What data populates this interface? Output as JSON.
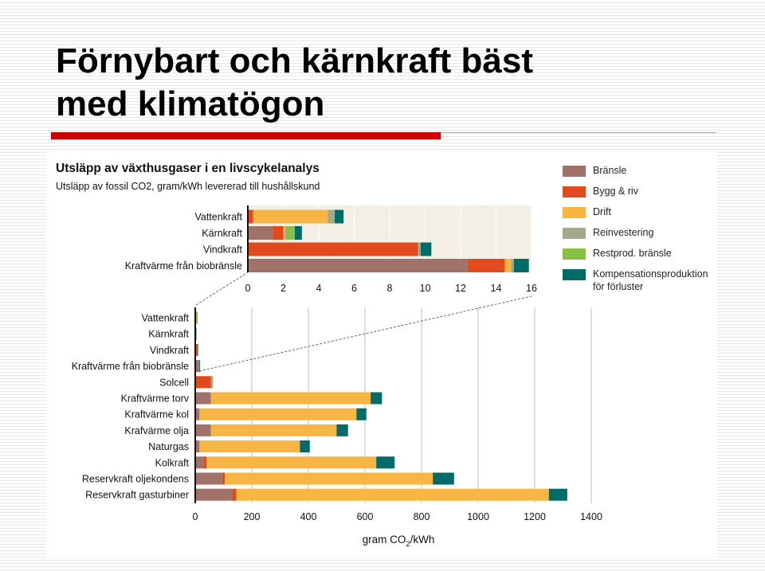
{
  "title": {
    "line1": "Förnybart och kärnkraft bäst",
    "line2": "med klimatögon"
  },
  "legend": [
    {
      "label": "Bränsle",
      "color": "#a0726a"
    },
    {
      "label": "Bygg & riv",
      "color": "#e04a1c"
    },
    {
      "label": "Drift",
      "color": "#f7b544"
    },
    {
      "label": "Reinvestering",
      "color": "#a3aa8c"
    },
    {
      "label": "Restprod. bränsle",
      "color": "#88c044"
    },
    {
      "label": "Kompensationsproduktion för förluster",
      "color": "#006b68"
    }
  ],
  "chart_data": [
    {
      "type": "bar",
      "orientation": "horizontal",
      "stacked": true,
      "title": "Utsläpp av växthusgaser i en livscykelanalys",
      "subtitle": "Utsläpp av fossil CO2, gram/kWh levererad till hushållskund",
      "xlim": [
        0,
        16
      ],
      "xticks": [
        0,
        2,
        4,
        6,
        8,
        10,
        12,
        14,
        16
      ],
      "categories": [
        "Vattenkraft",
        "Kärnkraft",
        "Vindkraft",
        "Kraftvärme från biobränsle"
      ],
      "series": [
        {
          "name": "Bränsle",
          "values": [
            0,
            1.4,
            0,
            12.4
          ]
        },
        {
          "name": "Bygg & riv",
          "values": [
            0.3,
            0.6,
            9.6,
            2.1
          ]
        },
        {
          "name": "Drift",
          "values": [
            4.2,
            0.1,
            0,
            0.35
          ]
        },
        {
          "name": "Reinvestering",
          "values": [
            0.4,
            0.1,
            0.15,
            0.15
          ]
        },
        {
          "name": "Restprod. bränsle",
          "values": [
            0,
            0.45,
            0,
            0
          ]
        },
        {
          "name": "Kompensationsproduktion för förluster",
          "values": [
            0.5,
            0.4,
            0.6,
            0.85
          ]
        }
      ]
    },
    {
      "type": "bar",
      "orientation": "horizontal",
      "stacked": true,
      "xlabel": "gram CO2/kWh",
      "xlim": [
        0,
        1400
      ],
      "xticks": [
        0,
        200,
        400,
        600,
        800,
        1000,
        1200,
        1400
      ],
      "categories": [
        "Vattenkraft",
        "Kärnkraft",
        "Vindkraft",
        "Kraftvärme från biobränsle",
        "Solcell",
        "Kraftvärme torv",
        "Kraftvärme kol",
        "Krafvärme olja",
        "Naturgas",
        "Kolkraft",
        "Reservkraft oljekondens",
        "Reservkraft gasturbiner"
      ],
      "series": [
        {
          "name": "Bränsle",
          "values": [
            0,
            1,
            0,
            12,
            0,
            55,
            15,
            55,
            15,
            30,
            95,
            130
          ]
        },
        {
          "name": "Bygg & riv",
          "values": [
            1,
            1,
            8,
            2,
            55,
            0,
            0,
            0,
            0,
            10,
            10,
            15
          ]
        },
        {
          "name": "Drift",
          "values": [
            4,
            0,
            0,
            0,
            0,
            565,
            555,
            445,
            355,
            600,
            735,
            1105
          ]
        },
        {
          "name": "Reinvestering",
          "values": [
            0,
            0,
            0,
            1,
            8,
            0,
            0,
            0,
            0,
            0,
            0,
            0
          ]
        },
        {
          "name": "Restprod. bränsle",
          "values": [
            0,
            0,
            0,
            0,
            0,
            0,
            0,
            0,
            0,
            0,
            0,
            0
          ]
        },
        {
          "name": "Kompensationsproduktion för förluster",
          "values": [
            0.5,
            0.5,
            0.6,
            1,
            0,
            40,
            35,
            40,
            35,
            65,
            75,
            65
          ]
        }
      ]
    }
  ],
  "xlabel_unit_sub": "2",
  "xlabel_suffix": "/kWh",
  "xlabel_prefix": "gram CO"
}
